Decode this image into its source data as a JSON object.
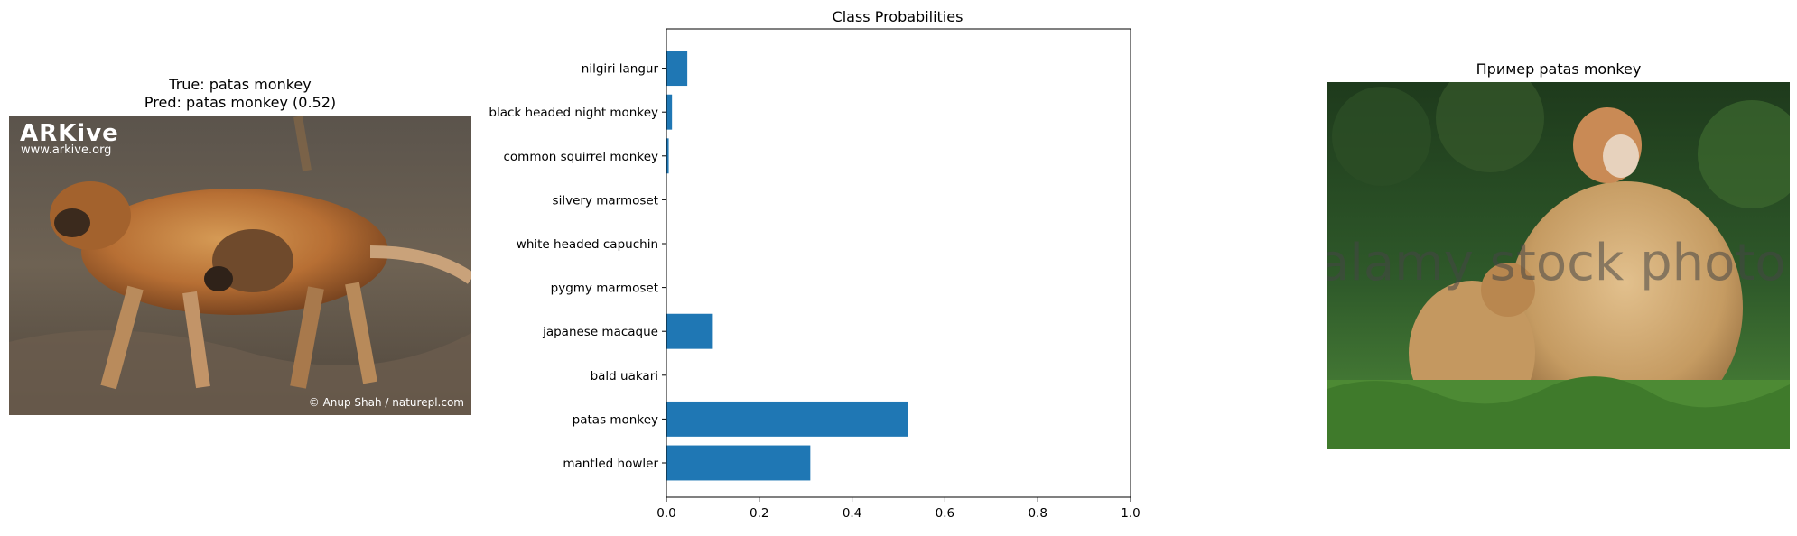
{
  "left_panel": {
    "title_line1": "True: patas monkey",
    "title_line2": "Pred: patas monkey (0.52)",
    "watermark_logo": "ARKive",
    "watermark_url": "www.arkive.org",
    "credit": "© Anup Shah / naturepl.com"
  },
  "right_panel": {
    "title": "Пример patas monkey",
    "watermark": "alamy stock photo"
  },
  "chart_data": {
    "type": "bar",
    "orientation": "horizontal",
    "title": "Class Probabilities",
    "categories": [
      "mantled howler",
      "patas monkey",
      "bald uakari",
      "japanese macaque",
      "pygmy marmoset",
      "white headed capuchin",
      "silvery marmoset",
      "common squirrel monkey",
      "black headed night monkey",
      "nilgiri langur"
    ],
    "values": [
      0.31,
      0.52,
      0.0,
      0.1,
      0.0,
      0.0,
      0.0,
      0.005,
      0.012,
      0.045
    ],
    "xlim": [
      0,
      1.0
    ],
    "xticks": [
      "0.0",
      "0.2",
      "0.4",
      "0.6",
      "0.8",
      "1.0"
    ],
    "xlabel": "",
    "ylabel": "",
    "grid": false,
    "color": "#1f77b4"
  }
}
